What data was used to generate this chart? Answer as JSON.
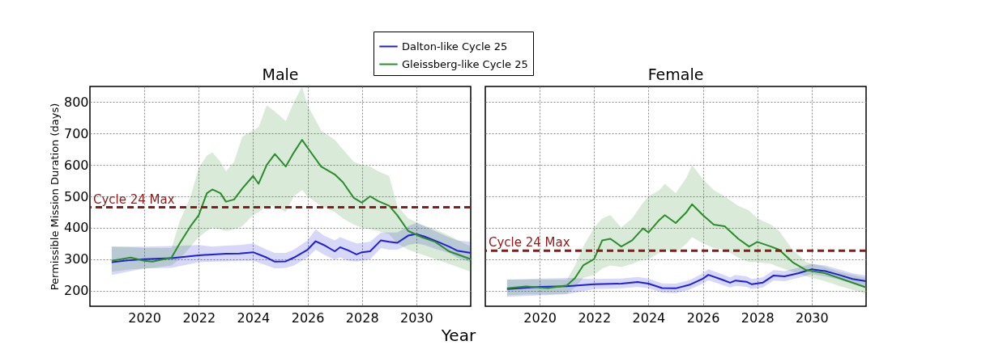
{
  "chart_data": [
    {
      "type": "line",
      "title": "Male",
      "xlabel": "Year",
      "ylabel": "Permissible Mission Duration (days)",
      "xlim": [
        2018,
        2032
      ],
      "xticks": [
        2020,
        2022,
        2024,
        2026,
        2028,
        2030
      ],
      "ylim": [
        150,
        850
      ],
      "yticks": [
        200,
        300,
        400,
        500,
        600,
        700,
        800
      ],
      "grid": true,
      "legend": "top",
      "series": [
        {
          "name": "Dalton-like Cycle 25",
          "color": "#1f1fd6",
          "x": [
            2018.8,
            2019.5,
            2020,
            2021,
            2022,
            2022.5,
            2023,
            2023.5,
            2024,
            2024.5,
            2024.8,
            2025.2,
            2025.5,
            2026,
            2026.3,
            2026.6,
            2027,
            2027.2,
            2027.5,
            2027.8,
            2028,
            2028.3,
            2028.7,
            2029,
            2029.3,
            2029.7,
            2030,
            2030.3,
            2030.8,
            2031.2,
            2031.5,
            2032
          ],
          "values": [
            290,
            297,
            300,
            303,
            312,
            315,
            317,
            318,
            322,
            305,
            292,
            293,
            305,
            330,
            357,
            345,
            325,
            338,
            328,
            315,
            322,
            325,
            360,
            355,
            352,
            375,
            380,
            372,
            355,
            340,
            327,
            320
          ],
          "lower": [
            250,
            262,
            270,
            272,
            290,
            292,
            293,
            295,
            295,
            280,
            270,
            272,
            280,
            305,
            330,
            315,
            298,
            305,
            295,
            292,
            295,
            300,
            335,
            330,
            330,
            345,
            350,
            345,
            330,
            320,
            305,
            290
          ],
          "upper": [
            340,
            340,
            340,
            342,
            345,
            340,
            343,
            345,
            350,
            330,
            320,
            320,
            330,
            360,
            395,
            375,
            360,
            370,
            360,
            350,
            352,
            355,
            385,
            385,
            385,
            405,
            415,
            405,
            385,
            370,
            360,
            355
          ]
        },
        {
          "name": "Gleissberg-like Cycle 25",
          "color": "#2a8c2a",
          "x": [
            2018.8,
            2019.5,
            2020,
            2020.3,
            2021,
            2021.3,
            2021.7,
            2022,
            2022.3,
            2022.5,
            2022.8,
            2023,
            2023.3,
            2023.6,
            2024,
            2024.2,
            2024.5,
            2024.8,
            2025.2,
            2025.5,
            2025.8,
            2026,
            2026.5,
            2027,
            2027.3,
            2027.7,
            2028,
            2028.3,
            2028.6,
            2029,
            2029.3,
            2029.7,
            2030.2,
            2030.7,
            2031.2,
            2032
          ],
          "values": [
            295,
            305,
            295,
            292,
            305,
            350,
            405,
            440,
            510,
            522,
            510,
            483,
            490,
            525,
            565,
            540,
            600,
            635,
            595,
            640,
            680,
            655,
            595,
            570,
            545,
            495,
            480,
            500,
            485,
            470,
            440,
            390,
            370,
            355,
            325,
            300
          ],
          "lower": [
            260,
            268,
            270,
            272,
            280,
            300,
            340,
            370,
            390,
            400,
            395,
            390,
            395,
            405,
            440,
            450,
            470,
            470,
            450,
            500,
            520,
            500,
            470,
            450,
            430,
            410,
            400,
            395,
            390,
            380,
            350,
            330,
            315,
            300,
            285,
            260
          ],
          "upper": [
            340,
            338,
            335,
            335,
            335,
            420,
            500,
            590,
            630,
            640,
            610,
            580,
            610,
            690,
            710,
            720,
            790,
            770,
            740,
            800,
            850,
            790,
            710,
            680,
            650,
            610,
            600,
            595,
            580,
            565,
            470,
            430,
            410,
            395,
            375,
            340
          ]
        }
      ],
      "ref_lines": [
        {
          "axis": "y",
          "value": 465,
          "label": "Cycle 24 Max",
          "color": "#8b1a1a",
          "line_style": "dashed"
        }
      ]
    },
    {
      "type": "line",
      "title": "Female",
      "xlim": [
        2018,
        2032
      ],
      "xticks": [
        2020,
        2022,
        2024,
        2026,
        2028,
        2030
      ],
      "ylim": [
        150,
        850
      ],
      "yticks": [
        200,
        300,
        400,
        500,
        600,
        700,
        800
      ],
      "grid": true,
      "tick_labels": "x",
      "series": [
        {
          "color": "#1f1fd6",
          "x": [
            2018.8,
            2020,
            2021,
            2022,
            2023,
            2023.6,
            2024,
            2024.5,
            2025,
            2025.5,
            2026,
            2026.2,
            2026.7,
            2027,
            2027.2,
            2027.6,
            2027.8,
            2028.2,
            2028.6,
            2029,
            2029.5,
            2030,
            2030.5,
            2031,
            2031.5,
            2032
          ],
          "values": [
            205,
            212,
            214,
            220,
            222,
            227,
            222,
            208,
            207,
            218,
            238,
            250,
            235,
            225,
            232,
            228,
            220,
            225,
            248,
            245,
            255,
            268,
            262,
            250,
            237,
            230
          ],
          "lower": [
            180,
            185,
            188,
            205,
            207,
            212,
            207,
            193,
            192,
            203,
            222,
            233,
            218,
            210,
            215,
            212,
            205,
            210,
            232,
            230,
            240,
            252,
            245,
            235,
            222,
            212
          ],
          "upper": [
            235,
            238,
            240,
            237,
            238,
            243,
            238,
            223,
            222,
            233,
            255,
            268,
            252,
            242,
            250,
            245,
            237,
            242,
            265,
            262,
            272,
            285,
            280,
            268,
            255,
            248
          ]
        },
        {
          "color": "#2a8c2a",
          "x": [
            2018.8,
            2019.5,
            2020.3,
            2021,
            2021.3,
            2021.6,
            2022,
            2022.3,
            2022.6,
            2023,
            2023.4,
            2023.8,
            2024,
            2024.4,
            2024.6,
            2025,
            2025.4,
            2025.6,
            2026,
            2026.4,
            2026.8,
            2027.3,
            2027.7,
            2028,
            2028.5,
            2028.8,
            2029.3,
            2029.8,
            2030.5,
            2031,
            2032
          ],
          "values": [
            207,
            213,
            208,
            216,
            240,
            280,
            300,
            360,
            365,
            340,
            360,
            398,
            385,
            425,
            440,
            415,
            450,
            475,
            440,
            410,
            405,
            365,
            340,
            355,
            340,
            330,
            290,
            265,
            255,
            240,
            210
          ],
          "lower": [
            185,
            188,
            188,
            190,
            210,
            240,
            250,
            270,
            280,
            275,
            285,
            300,
            300,
            320,
            330,
            320,
            350,
            370,
            350,
            335,
            330,
            305,
            290,
            290,
            285,
            275,
            260,
            245,
            230,
            215,
            190
          ],
          "upper": [
            235,
            235,
            235,
            235,
            280,
            340,
            400,
            430,
            440,
            400,
            430,
            480,
            500,
            520,
            540,
            510,
            560,
            600,
            555,
            520,
            500,
            470,
            455,
            430,
            410,
            390,
            330,
            290,
            275,
            260,
            240
          ]
        }
      ],
      "ref_lines": [
        {
          "axis": "y",
          "value": 327,
          "label": "Cycle 24 Max",
          "color": "#8b1a1a",
          "line_style": "dashed"
        }
      ]
    }
  ]
}
